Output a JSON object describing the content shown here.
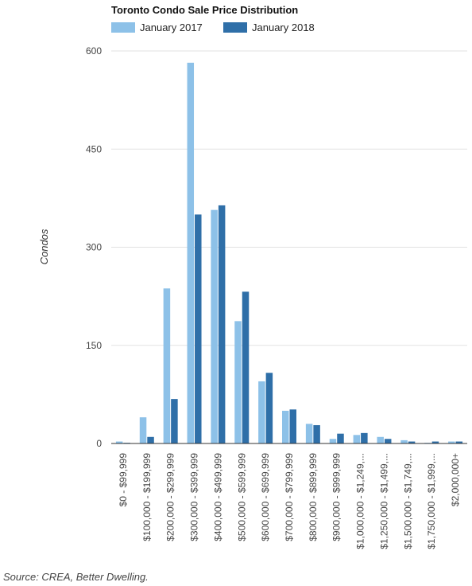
{
  "chart_data": {
    "type": "bar",
    "title": "Toronto Condo Sale Price Distribution",
    "ylabel": "Condos",
    "xlabel": "",
    "ylim": [
      0,
      600
    ],
    "yticks": [
      0,
      150,
      300,
      450,
      600
    ],
    "grid": true,
    "legend_position": "top-left",
    "categories": [
      "$0 - $99,999",
      "$100,000 - $199,999",
      "$200,000 - $299,999",
      "$300,000 - $399,999",
      "$400,000 - $499,999",
      "$500,000 - $599,999",
      "$600,000 - $699,999",
      "$700,000 - $799,999",
      "$800,000 - $899,999",
      "$900,000 - $999,999",
      "$1,000,000 - $1,249,...",
      "$1,250,000 - $1,499,...",
      "$1,500,000 - $1,749,...",
      "$1,750,000 - $1,999,...",
      "$2,000,000+"
    ],
    "series": [
      {
        "name": "January 2017",
        "color": "#8dc1e8",
        "values": [
          3,
          40,
          237,
          582,
          357,
          187,
          95,
          50,
          30,
          7,
          13,
          10,
          5,
          1,
          3
        ]
      },
      {
        "name": "January 2018",
        "color": "#2f6fa8",
        "values": [
          1,
          10,
          68,
          350,
          364,
          232,
          108,
          52,
          28,
          15,
          16,
          7,
          3,
          3,
          3
        ]
      }
    ],
    "source": "Source: CREA, Better Dwelling."
  }
}
